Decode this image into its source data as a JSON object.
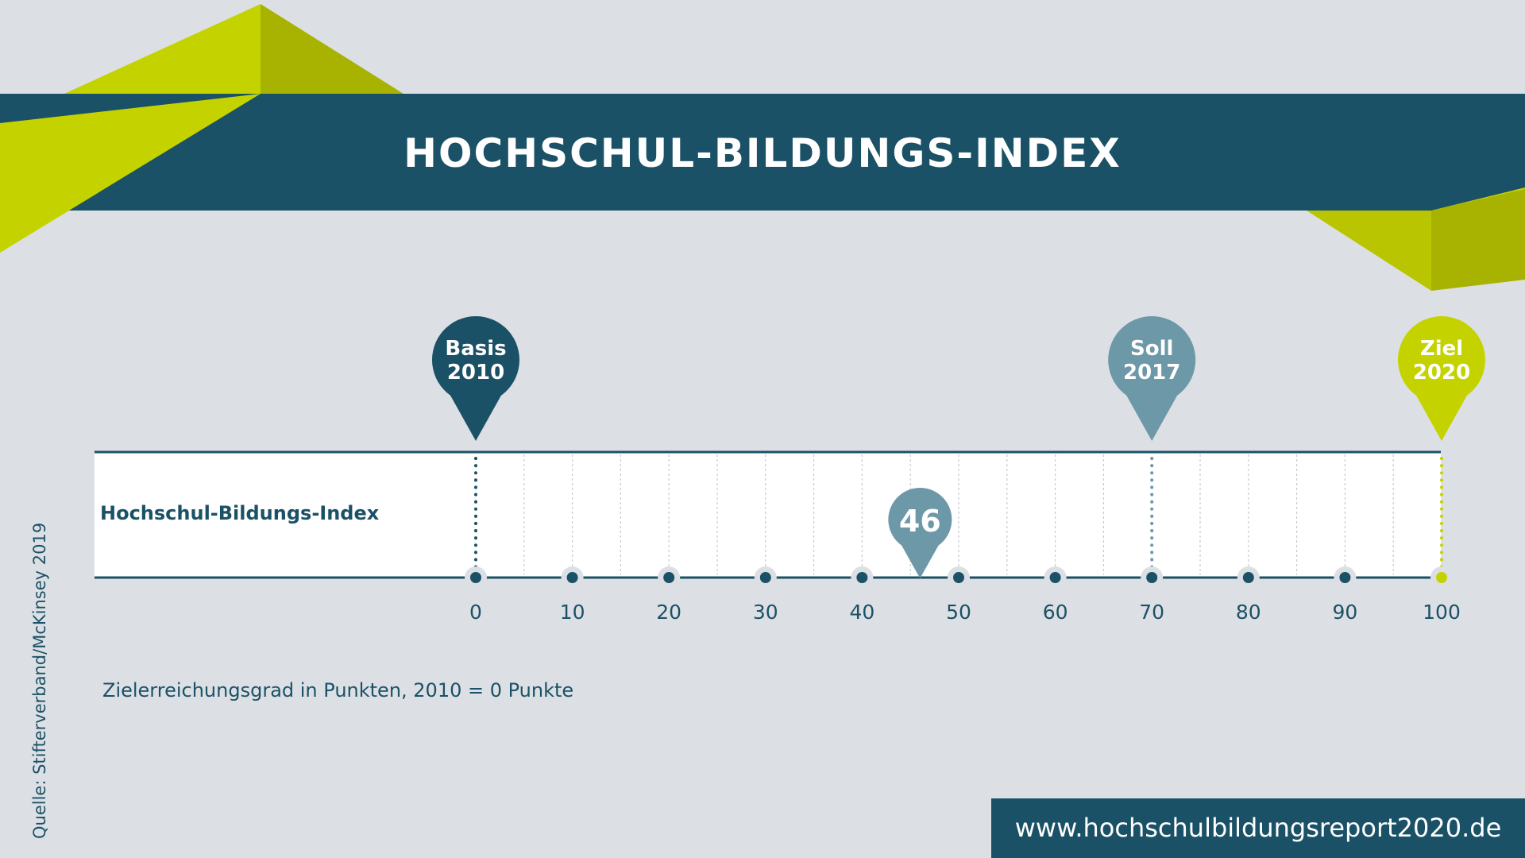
{
  "header": {
    "title": "HOCHSCHUL-BILDUNGS-INDEX"
  },
  "colors": {
    "background": "#dce0e4",
    "dark_teal": "#1b5166",
    "mid_teal": "#6d98a8",
    "lime": "#c4d300",
    "lime_dark": "#a7b300"
  },
  "chart_data": {
    "type": "scale",
    "row_label": "Hochschul-Bildungs-Index",
    "xlim": [
      0,
      100
    ],
    "ticks": [
      0,
      10,
      20,
      30,
      40,
      50,
      60,
      70,
      80,
      90,
      100
    ],
    "tick_labels": [
      "0",
      "10",
      "20",
      "30",
      "40",
      "50",
      "60",
      "70",
      "80",
      "90",
      "100"
    ],
    "markers": [
      {
        "value": 0,
        "line1": "Basis",
        "line2": "2010",
        "color": "#1b5166"
      },
      {
        "value": 70,
        "line1": "Soll",
        "line2": "2017",
        "color": "#6d98a8"
      },
      {
        "value": 100,
        "line1": "Ziel",
        "line2": "2020",
        "color": "#c4d300"
      }
    ],
    "current": {
      "value": 46,
      "label": "46",
      "color": "#6d98a8"
    },
    "note": "Zielerreichungsgrad in Punkten, 2010 = 0 Punkte"
  },
  "footer": {
    "source": "Quelle: Stifterverband/McKinsey 2019",
    "url": "www.hochschulbildungsreport2020.de"
  }
}
